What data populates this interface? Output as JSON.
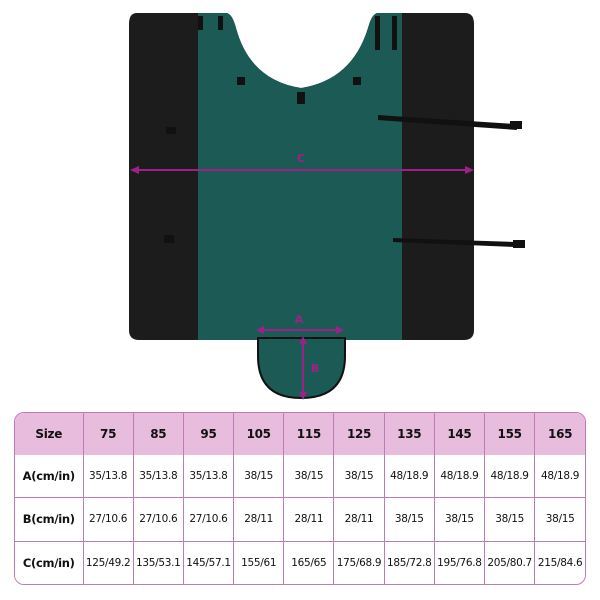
{
  "colors": {
    "panel": "#1b5a55",
    "side": "#1c1c1c",
    "arrow": "#a0208a",
    "header_bg": "#e8bcdc",
    "border": "#c07ab4"
  },
  "diagram": {
    "labels": {
      "a": "A",
      "b": "B",
      "c": "C"
    }
  },
  "size_table": {
    "header": [
      "Size",
      "75",
      "85",
      "95",
      "105",
      "115",
      "125",
      "135",
      "145",
      "155",
      "165"
    ],
    "rows": [
      {
        "label": "A(cm/in)",
        "values": [
          "35/13.8",
          "35/13.8",
          "35/13.8",
          "38/15",
          "38/15",
          "38/15",
          "48/18.9",
          "48/18.9",
          "48/18.9",
          "48/18.9"
        ]
      },
      {
        "label": "B(cm/in)",
        "values": [
          "27/10.6",
          "27/10.6",
          "27/10.6",
          "28/11",
          "28/11",
          "28/11",
          "38/15",
          "38/15",
          "38/15",
          "38/15"
        ]
      },
      {
        "label": "C(cm/in)",
        "values": [
          "125/49.2",
          "135/53.1",
          "145/57.1",
          "155/61",
          "165/65",
          "175/68.9",
          "185/72.8",
          "195/76.8",
          "205/80.7",
          "215/84.6"
        ]
      }
    ]
  }
}
